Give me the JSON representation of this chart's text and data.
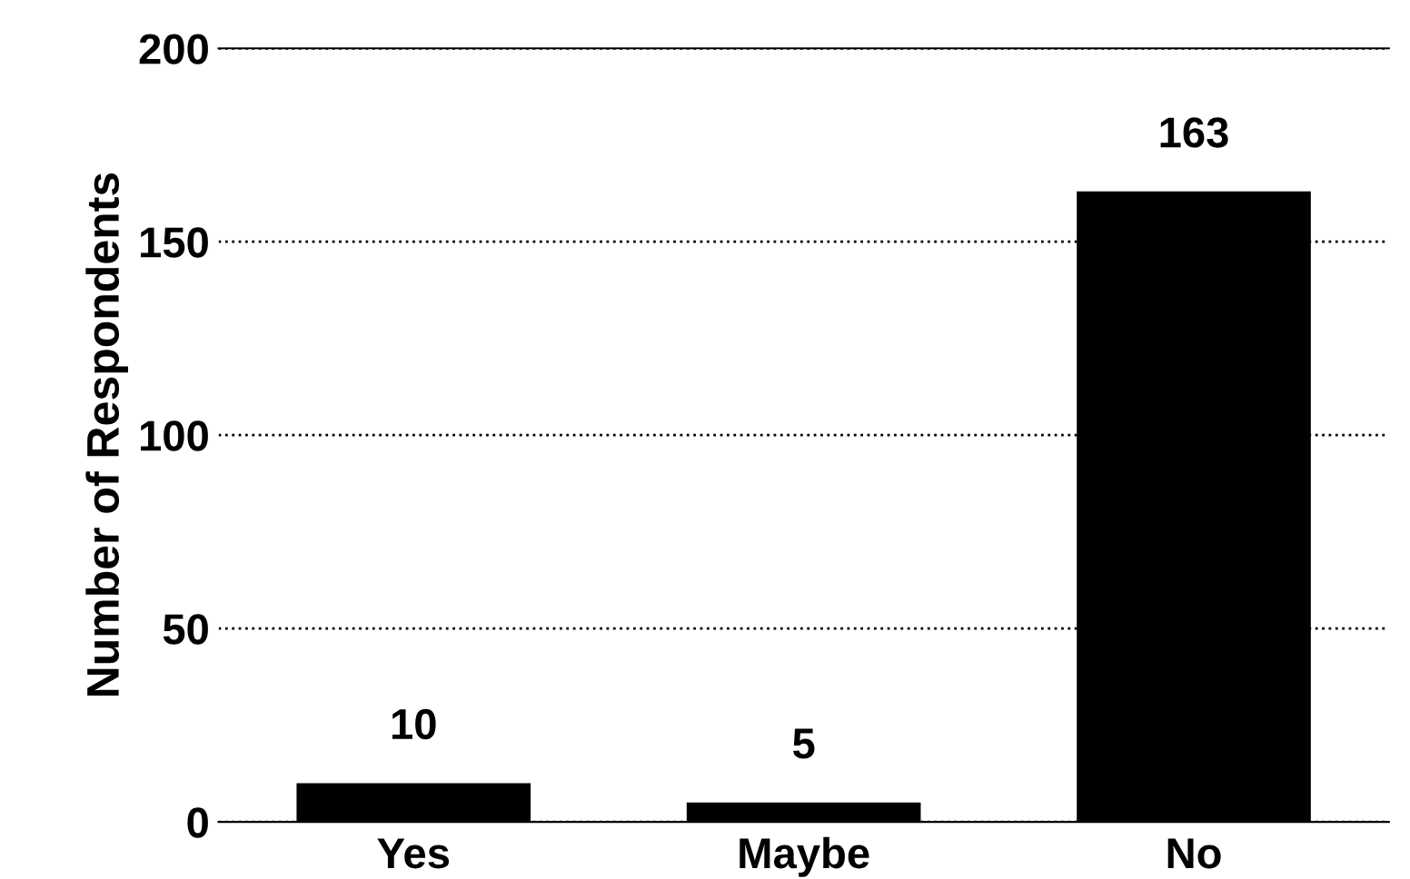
{
  "chart_data": {
    "type": "bar",
    "ylabel": "Number of Respondents",
    "categories": [
      "Yes",
      "Maybe",
      "No"
    ],
    "values": [
      10,
      5,
      163
    ],
    "color": "#000000",
    "ylim": [
      0,
      200
    ],
    "yticks": [
      0,
      50,
      100,
      150,
      200
    ],
    "grid": "y",
    "line_style": "dotted",
    "data_labels": true
  }
}
